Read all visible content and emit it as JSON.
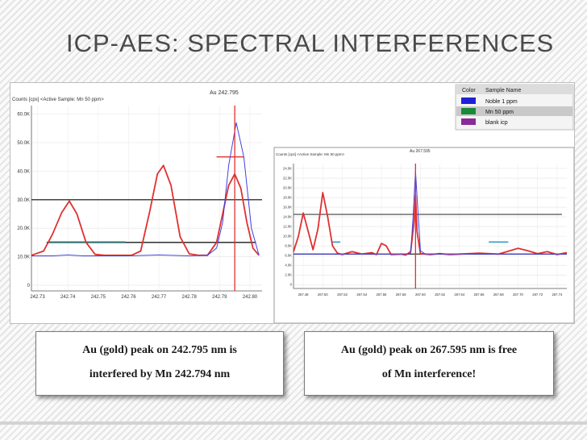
{
  "slide": {
    "title": "ICP-AES: SPECTRAL INTERFERENCES",
    "caption_left": [
      "Au (gold) peak on 242.795 nm is",
      "interfered by Mn 242.794 nm"
    ],
    "caption_right": [
      "Au (gold) peak on 267.595 nm is free",
      "of  Mn interference!"
    ]
  },
  "legend": {
    "header_color": "Color",
    "header_name": "Sample Name",
    "items": [
      {
        "name": "Noble 1 ppm",
        "color": "#2020d8"
      },
      {
        "name": "Mn 50 ppm",
        "color": "#1a8a3a"
      },
      {
        "name": "blank icp",
        "color": "#8a2a9a"
      }
    ]
  },
  "chart_data": [
    {
      "type": "line",
      "title": "Au 242.795",
      "ylabel": "Counts [cps]  <Active Sample: Mn 50 ppm>",
      "x_ticks": [
        "242.73",
        "242.74",
        "242.75",
        "242.76",
        "242.77",
        "242.78",
        "242.79",
        "242.80"
      ],
      "y_ticks": [
        "0",
        "10.0K",
        "20.0K",
        "30.0K",
        "40.0K",
        "50.0K",
        "60.0K"
      ],
      "xlim": [
        242.728,
        242.804
      ],
      "ylim": [
        -2000,
        63000
      ],
      "series": [
        {
          "color": "#e03030",
          "x": [
            242.728,
            242.732,
            242.735,
            242.738,
            242.7405,
            242.743,
            242.746,
            242.749,
            242.752,
            242.755,
            242.758,
            242.761,
            242.764,
            242.767,
            242.7695,
            242.7715,
            242.774,
            242.777,
            242.78,
            242.783,
            242.786,
            242.789,
            242.791,
            242.793,
            242.795,
            242.797,
            242.799,
            242.801,
            242.803
          ],
          "y": [
            10500,
            12000,
            18000,
            25500,
            29500,
            25000,
            15000,
            10800,
            10500,
            10500,
            10500,
            10500,
            12000,
            26000,
            39000,
            42000,
            35000,
            17000,
            11000,
            10500,
            10500,
            15000,
            25000,
            35000,
            39000,
            34000,
            22000,
            13000,
            10500
          ]
        },
        {
          "color": "#4040e0",
          "x": [
            242.728,
            242.735,
            242.74,
            242.745,
            242.75,
            242.76,
            242.77,
            242.78,
            242.786,
            242.789,
            242.791,
            242.793,
            242.7955,
            242.798,
            242.8005,
            242.803
          ],
          "y": [
            10300,
            10300,
            10600,
            10300,
            10300,
            10300,
            10600,
            10300,
            10500,
            13000,
            22000,
            42000,
            57000,
            45000,
            20000,
            10500
          ]
        }
      ],
      "annotations": {
        "hlines": [
          {
            "y": 30000,
            "x1": 242.728,
            "x2": 242.804,
            "color": "#303030"
          },
          {
            "y": 15000,
            "x1": 242.733,
            "x2": 242.802,
            "color": "#1a1a1a"
          },
          {
            "y": 15200,
            "x1": 242.734,
            "x2": 242.759,
            "color": "#1a8a8a"
          },
          {
            "y": 45000,
            "x1": 242.789,
            "x2": 242.798,
            "color": "#e03030"
          }
        ],
        "vlines": [
          {
            "x": 242.795,
            "y1": -2000,
            "y2": 63000,
            "color": "#e03030"
          }
        ]
      }
    },
    {
      "type": "line",
      "title": "Au 267.595",
      "ylabel": "Counts [cps]  <Active Sample: Mn 50 ppm>",
      "x_ticks": [
        "267.48",
        "267.50",
        "267.52",
        "267.54",
        "267.56",
        "267.58",
        "267.60",
        "267.62",
        "267.64",
        "267.66",
        "267.68",
        "267.70",
        "267.72",
        "267.74"
      ],
      "y_ticks": [
        "0",
        "2.0K",
        "4.0K",
        "6.0K",
        "8.0K",
        "10.0K",
        "12.0K",
        "14.0K",
        "16.0K",
        "18.0K",
        "20.0K",
        "22.0K",
        "24.0K"
      ],
      "xlim": [
        267.47,
        267.75
      ],
      "ylim": [
        -800,
        25000
      ],
      "series": [
        {
          "color": "#e03030",
          "x": [
            267.47,
            267.475,
            267.48,
            267.485,
            267.49,
            267.495,
            267.5,
            267.505,
            267.51,
            267.515,
            267.52,
            267.53,
            267.54,
            267.55,
            267.555,
            267.56,
            267.565,
            267.57,
            267.58,
            267.585,
            267.59,
            267.5935,
            267.595,
            267.5965,
            267.6,
            267.61,
            267.62,
            267.63,
            267.64,
            267.66,
            267.68,
            267.69,
            267.7,
            267.71,
            267.72,
            267.73,
            267.74,
            267.75
          ],
          "y": [
            6800,
            10000,
            14800,
            11000,
            7200,
            11500,
            19000,
            14000,
            8000,
            6500,
            6200,
            6800,
            6300,
            6600,
            6200,
            8500,
            8000,
            6200,
            6300,
            6100,
            6800,
            13000,
            18500,
            11000,
            6400,
            6200,
            6400,
            6200,
            6300,
            6500,
            6300,
            6900,
            7500,
            7000,
            6400,
            6800,
            6200,
            6600
          ]
        },
        {
          "color": "#4040e0",
          "x": [
            267.47,
            267.5,
            267.55,
            267.58,
            267.59,
            267.5925,
            267.595,
            267.5975,
            267.6,
            267.605,
            267.63,
            267.68,
            267.75
          ],
          "y": [
            6300,
            6300,
            6300,
            6300,
            6400,
            14000,
            23500,
            15000,
            7000,
            6300,
            6300,
            6300,
            6300
          ]
        }
      ],
      "annotations": {
        "hlines": [
          {
            "y": 14500,
            "x1": 267.47,
            "x2": 267.745,
            "color": "#606060"
          },
          {
            "y": 6300,
            "x1": 267.47,
            "x2": 267.75,
            "color": "#404040"
          },
          {
            "y": 8800,
            "x1": 267.51,
            "x2": 267.518,
            "color": "#2090c0"
          },
          {
            "y": 8800,
            "x1": 267.67,
            "x2": 267.69,
            "color": "#2090c0"
          }
        ],
        "vlines": [
          {
            "x": 267.595,
            "y1": -800,
            "y2": 25000,
            "color": "#e03030"
          }
        ]
      }
    }
  ]
}
